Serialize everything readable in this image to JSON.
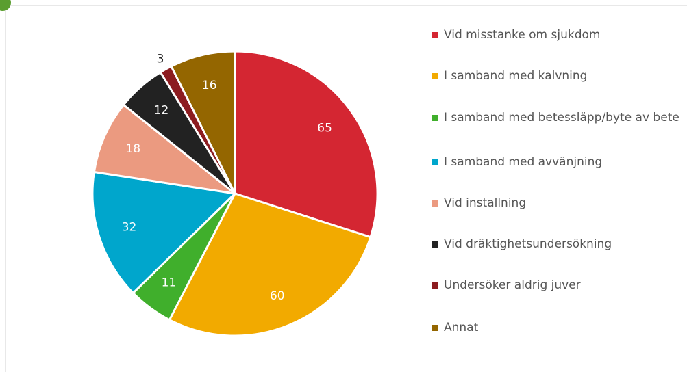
{
  "chart_data": {
    "type": "pie",
    "categories": [
      "Vid misstanke om sjukdom",
      "I samband med kalvning",
      "I samband med betessläpp/byte av bete",
      "I samband med avvänjning",
      "Vid installning",
      "Vid dräktighetsundersökning",
      "Undersöker aldrig juver",
      "Annat"
    ],
    "values": [
      65,
      60,
      11,
      32,
      18,
      12,
      3,
      16
    ],
    "colors": [
      "#d42632",
      "#f2aa00",
      "#40af2c",
      "#00a6cc",
      "#eb9a80",
      "#222222",
      "#8c1c20",
      "#946600"
    ],
    "legend": "right"
  }
}
